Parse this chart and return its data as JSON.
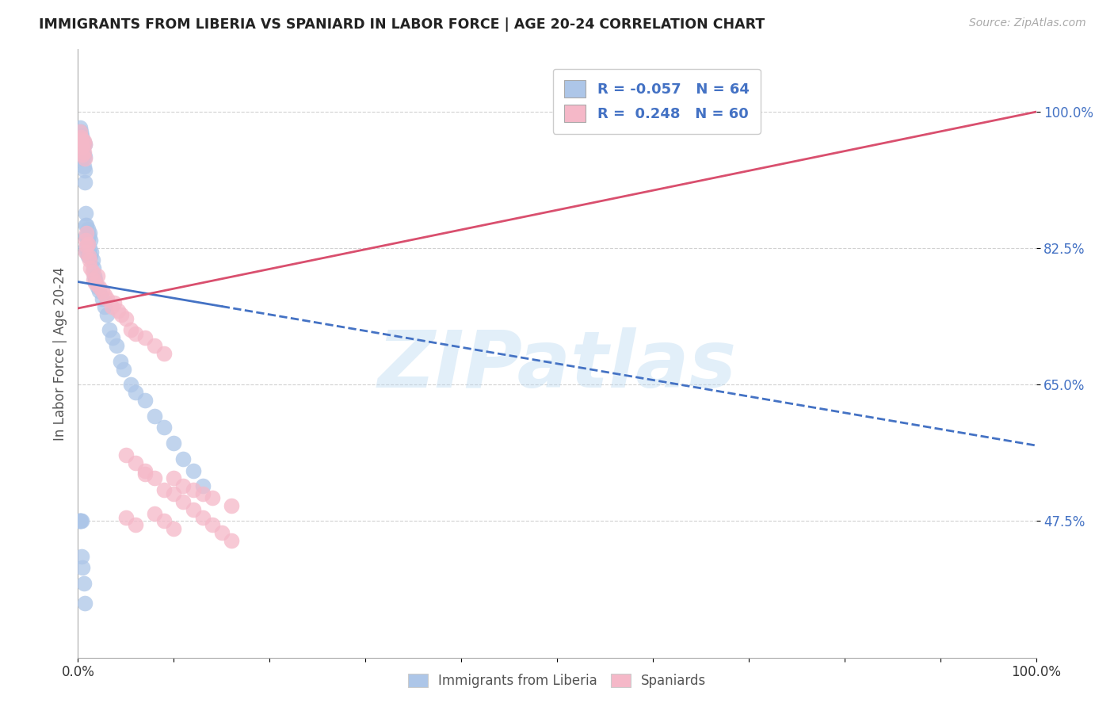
{
  "title": "IMMIGRANTS FROM LIBERIA VS SPANIARD IN LABOR FORCE | AGE 20-24 CORRELATION CHART",
  "source_text": "Source: ZipAtlas.com",
  "ylabel": "In Labor Force | Age 20-24",
  "xlim": [
    0.0,
    1.0
  ],
  "ylim": [
    0.3,
    1.08
  ],
  "xticks": [
    0.0,
    0.1,
    0.2,
    0.3,
    0.4,
    0.5,
    0.6,
    0.7,
    0.8,
    0.9,
    1.0
  ],
  "xticklabels": [
    "0.0%",
    "",
    "",
    "",
    "",
    "",
    "",
    "",
    "",
    "",
    "100.0%"
  ],
  "ytick_positions": [
    0.475,
    0.65,
    0.825,
    1.0
  ],
  "ytick_labels": [
    "47.5%",
    "65.0%",
    "82.5%",
    "100.0%"
  ],
  "legend_r_blue": "-0.057",
  "legend_n_blue": "64",
  "legend_r_pink": "0.248",
  "legend_n_pink": "60",
  "blue_color": "#adc6e8",
  "pink_color": "#f5b8c8",
  "blue_line_color": "#4472c4",
  "pink_line_color": "#d94f6e",
  "watermark": "ZIPatlas",
  "blue_x": [
    0.002,
    0.003,
    0.003,
    0.004,
    0.004,
    0.005,
    0.005,
    0.005,
    0.006,
    0.006,
    0.006,
    0.007,
    0.007,
    0.007,
    0.007,
    0.008,
    0.008,
    0.008,
    0.008,
    0.009,
    0.009,
    0.009,
    0.01,
    0.01,
    0.01,
    0.011,
    0.011,
    0.012,
    0.012,
    0.013,
    0.013,
    0.014,
    0.015,
    0.016,
    0.017,
    0.018,
    0.02,
    0.022,
    0.025,
    0.028,
    0.03,
    0.033,
    0.036,
    0.04,
    0.044,
    0.048,
    0.055,
    0.06,
    0.07,
    0.08,
    0.09,
    0.1,
    0.11,
    0.12,
    0.13,
    0.001,
    0.002,
    0.002,
    0.003,
    0.004,
    0.004,
    0.005,
    0.006,
    0.007
  ],
  "blue_y": [
    0.98,
    0.975,
    0.96,
    0.97,
    0.955,
    0.965,
    0.95,
    0.94,
    0.96,
    0.945,
    0.93,
    0.958,
    0.942,
    0.925,
    0.91,
    0.87,
    0.855,
    0.84,
    0.825,
    0.855,
    0.84,
    0.82,
    0.85,
    0.835,
    0.815,
    0.84,
    0.82,
    0.845,
    0.825,
    0.835,
    0.815,
    0.82,
    0.81,
    0.8,
    0.79,
    0.785,
    0.775,
    0.77,
    0.76,
    0.75,
    0.74,
    0.72,
    0.71,
    0.7,
    0.68,
    0.67,
    0.65,
    0.64,
    0.63,
    0.61,
    0.595,
    0.575,
    0.555,
    0.54,
    0.52,
    0.475,
    0.475,
    0.475,
    0.475,
    0.475,
    0.43,
    0.415,
    0.395,
    0.37
  ],
  "pink_x": [
    0.002,
    0.003,
    0.003,
    0.004,
    0.005,
    0.005,
    0.006,
    0.006,
    0.007,
    0.007,
    0.008,
    0.008,
    0.009,
    0.009,
    0.01,
    0.011,
    0.012,
    0.013,
    0.015,
    0.016,
    0.018,
    0.02,
    0.022,
    0.025,
    0.028,
    0.03,
    0.035,
    0.038,
    0.042,
    0.045,
    0.05,
    0.055,
    0.06,
    0.07,
    0.08,
    0.09,
    0.1,
    0.11,
    0.12,
    0.13,
    0.14,
    0.16,
    0.05,
    0.06,
    0.07,
    0.08,
    0.09,
    0.1,
    0.05,
    0.06,
    0.07,
    0.08,
    0.09,
    0.1,
    0.11,
    0.12,
    0.13,
    0.14,
    0.15,
    0.16
  ],
  "pink_y": [
    0.975,
    0.968,
    0.958,
    0.965,
    0.955,
    0.945,
    0.962,
    0.948,
    0.958,
    0.94,
    0.835,
    0.82,
    0.845,
    0.828,
    0.83,
    0.815,
    0.81,
    0.8,
    0.795,
    0.785,
    0.78,
    0.79,
    0.775,
    0.77,
    0.765,
    0.76,
    0.75,
    0.755,
    0.745,
    0.74,
    0.735,
    0.72,
    0.715,
    0.71,
    0.7,
    0.69,
    0.53,
    0.52,
    0.515,
    0.51,
    0.505,
    0.495,
    0.56,
    0.55,
    0.54,
    0.485,
    0.475,
    0.465,
    0.48,
    0.47,
    0.535,
    0.53,
    0.515,
    0.51,
    0.5,
    0.49,
    0.48,
    0.47,
    0.46,
    0.45
  ],
  "blue_trend_x": [
    0.0,
    1.0
  ],
  "blue_trend_y": [
    0.782,
    0.572
  ],
  "pink_trend_x": [
    0.0,
    1.0
  ],
  "pink_trend_y": [
    0.748,
    1.0
  ]
}
